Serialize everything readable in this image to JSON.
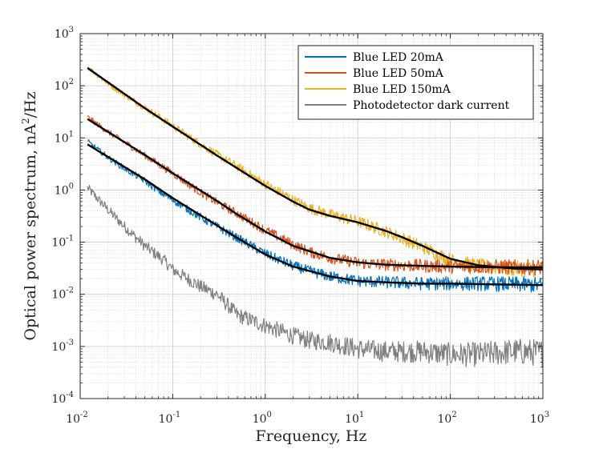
{
  "chart_data": {
    "type": "line",
    "xlabel": "Frequency, Hz",
    "ylabel": "Optical power spectrum,  nA",
    "ylabel_sup": "2",
    "ylabel_suffix": "/Hz",
    "xscale": "log",
    "yscale": "log",
    "xlim": [
      0.01,
      1000
    ],
    "ylim": [
      0.0001,
      1000
    ],
    "grid": true,
    "minor_grid": true,
    "legend_position": "top-right",
    "x_ticks": [
      {
        "base": "10",
        "exp": "-2",
        "value": 0.01
      },
      {
        "base": "10",
        "exp": "-1",
        "value": 0.1
      },
      {
        "base": "10",
        "exp": "0",
        "value": 1
      },
      {
        "base": "10",
        "exp": "1",
        "value": 10
      },
      {
        "base": "10",
        "exp": "2",
        "value": 100
      },
      {
        "base": "10",
        "exp": "3",
        "value": 1000
      }
    ],
    "y_ticks": [
      {
        "base": "10",
        "exp": "-4",
        "value": 0.0001
      },
      {
        "base": "10",
        "exp": "-3",
        "value": 0.001
      },
      {
        "base": "10",
        "exp": "-2",
        "value": 0.01
      },
      {
        "base": "10",
        "exp": "-1",
        "value": 0.1
      },
      {
        "base": "10",
        "exp": "0",
        "value": 1
      },
      {
        "base": "10",
        "exp": "1",
        "value": 10
      },
      {
        "base": "10",
        "exp": "2",
        "value": 100
      },
      {
        "base": "10",
        "exp": "3",
        "value": 1000
      }
    ],
    "series": [
      {
        "name": "Blue LED 20mA",
        "color": "#0072BD",
        "x": [
          0.012,
          0.02,
          0.03,
          0.05,
          0.08,
          0.1,
          0.2,
          0.3,
          0.5,
          1,
          2,
          3,
          5,
          10,
          20,
          50,
          100,
          200,
          500,
          1000
        ],
        "y": [
          8.5,
          4.2,
          2.6,
          1.5,
          0.82,
          0.65,
          0.3,
          0.2,
          0.12,
          0.06,
          0.035,
          0.028,
          0.022,
          0.018,
          0.017,
          0.016,
          0.016,
          0.016,
          0.0155,
          0.015
        ]
      },
      {
        "name": "Blue LED 50mA",
        "color": "#D95319",
        "x": [
          0.012,
          0.02,
          0.03,
          0.05,
          0.08,
          0.1,
          0.2,
          0.3,
          0.5,
          1,
          2,
          3,
          5,
          10,
          20,
          50,
          100,
          200,
          500,
          1000
        ],
        "y": [
          25,
          13,
          8.3,
          4.6,
          2.7,
          2.1,
          0.9,
          0.58,
          0.35,
          0.17,
          0.09,
          0.065,
          0.05,
          0.04,
          0.037,
          0.035,
          0.034,
          0.034,
          0.033,
          0.033
        ]
      },
      {
        "name": "Blue LED 150mA",
        "color": "#EDB120",
        "x": [
          0.012,
          0.02,
          0.03,
          0.05,
          0.08,
          0.1,
          0.2,
          0.3,
          0.5,
          1,
          2,
          3,
          5,
          10,
          20,
          30,
          50,
          100,
          200,
          500,
          1000
        ],
        "y": [
          230,
          110,
          68,
          38,
          22,
          17,
          7.5,
          4.8,
          2.8,
          1.3,
          0.65,
          0.45,
          0.34,
          0.25,
          0.16,
          0.12,
          0.08,
          0.045,
          0.035,
          0.031,
          0.03
        ]
      },
      {
        "name": "Photodetector dark current",
        "color": "#808080",
        "x": [
          0.012,
          0.02,
          0.03,
          0.05,
          0.08,
          0.1,
          0.2,
          0.3,
          0.5,
          1,
          2,
          3,
          5,
          10,
          20,
          50,
          100,
          200,
          500,
          1000
        ],
        "y": [
          1.1,
          0.42,
          0.2,
          0.085,
          0.045,
          0.03,
          0.014,
          0.01,
          0.004,
          0.0025,
          0.0016,
          0.0013,
          0.0012,
          0.0009,
          0.0008,
          0.0008,
          0.0007,
          0.0007,
          0.0008,
          0.00075
        ]
      }
    ],
    "fits": [
      {
        "color": "#000000",
        "x": [
          0.012,
          0.05,
          0.1,
          0.3,
          0.5,
          1,
          2,
          5,
          10,
          20,
          50,
          100,
          300,
          1000
        ],
        "y": [
          7.5,
          1.6,
          0.7,
          0.21,
          0.12,
          0.058,
          0.034,
          0.022,
          0.018,
          0.017,
          0.016,
          0.016,
          0.0155,
          0.015
        ]
      },
      {
        "color": "#000000",
        "x": [
          0.012,
          0.05,
          0.1,
          0.3,
          0.5,
          1,
          2,
          5,
          10,
          20,
          50,
          100,
          300,
          1000
        ],
        "y": [
          23,
          4.7,
          2.1,
          0.62,
          0.34,
          0.16,
          0.085,
          0.05,
          0.041,
          0.037,
          0.035,
          0.034,
          0.033,
          0.033
        ]
      },
      {
        "color": "#000000",
        "x": [
          0.012,
          0.05,
          0.1,
          0.3,
          0.5,
          1,
          2,
          3,
          5,
          10,
          20,
          30,
          50,
          100,
          200,
          500,
          1000
        ],
        "y": [
          220,
          37,
          16.5,
          4.6,
          2.6,
          1.2,
          0.6,
          0.42,
          0.32,
          0.24,
          0.165,
          0.125,
          0.085,
          0.048,
          0.036,
          0.031,
          0.03
        ]
      }
    ]
  }
}
